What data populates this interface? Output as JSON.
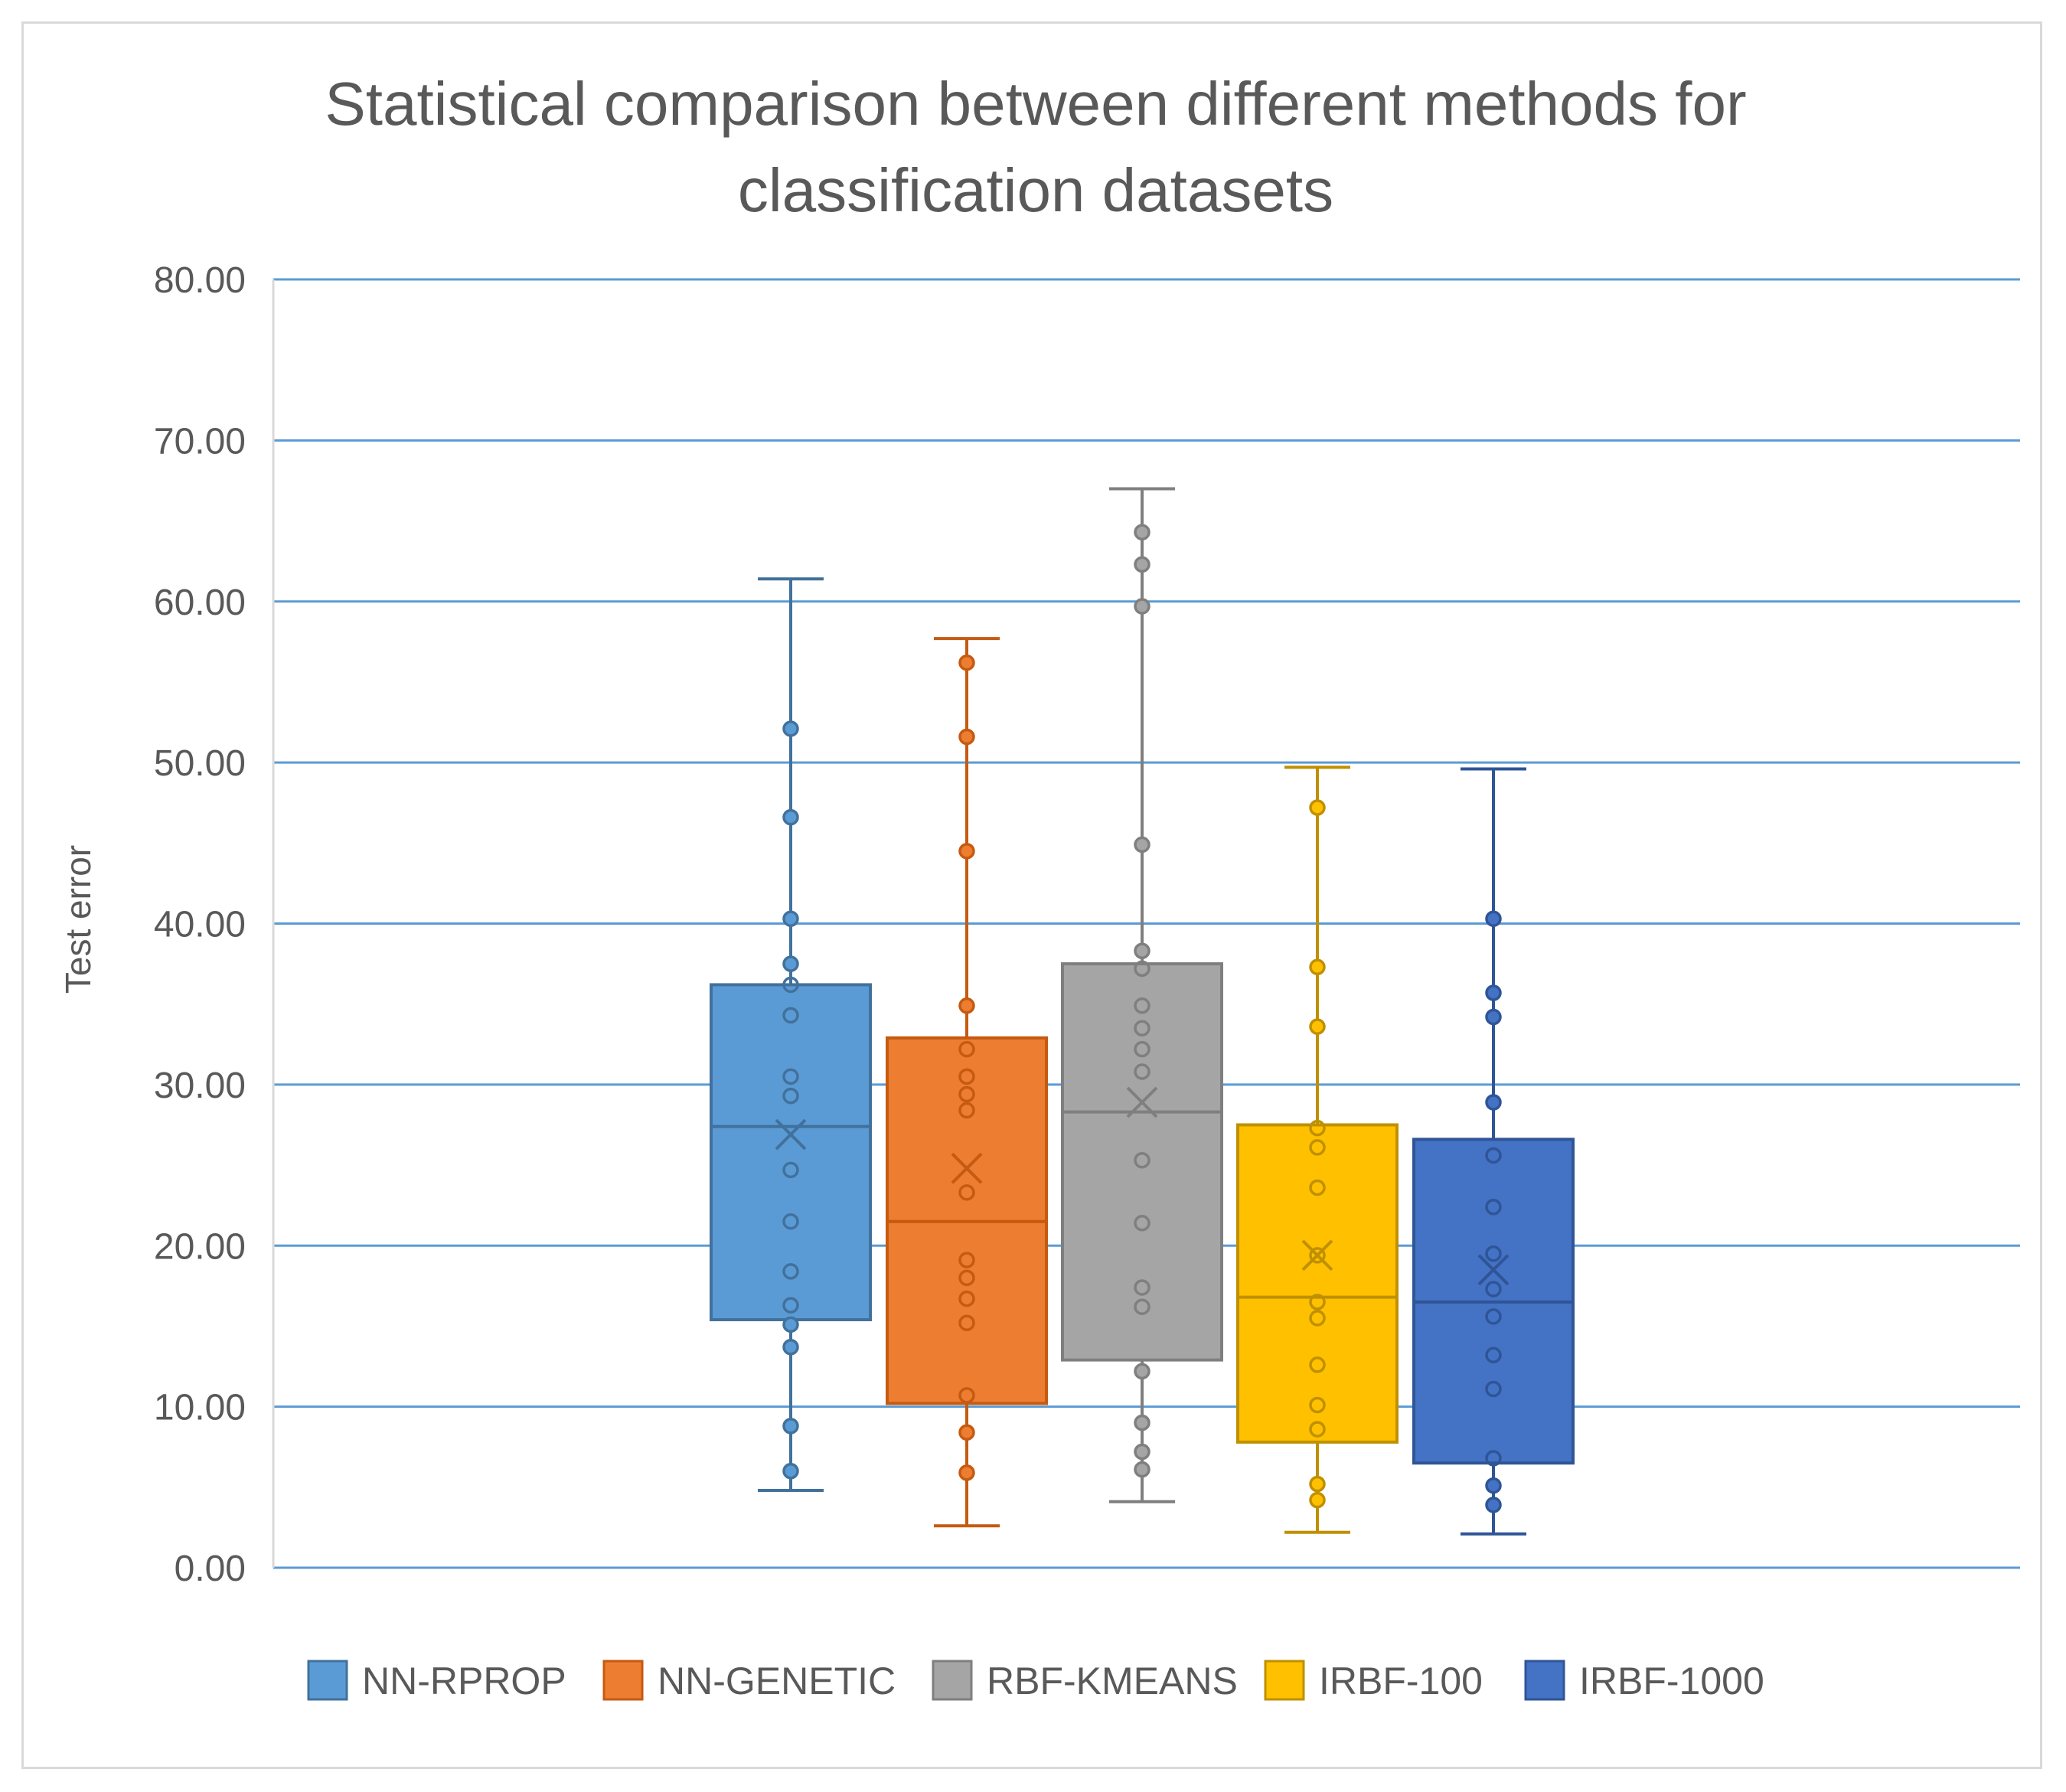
{
  "chart_data": {
    "type": "box",
    "title": "Statistical comparison between different methods for classification datasets",
    "title_lines": [
      "Statistical comparison between different methods for",
      "classification datasets"
    ],
    "ylabel": "Test error",
    "xlabel": "",
    "ylim": [
      0,
      80
    ],
    "ytick_values": [
      0,
      10,
      20,
      30,
      40,
      50,
      60,
      70,
      80
    ],
    "ytick_labels": [
      "0.00",
      "10.00",
      "20.00",
      "30.00",
      "40.00",
      "50.00",
      "60.00",
      "70.00",
      "80.00"
    ],
    "grid": true,
    "legend_position": "bottom",
    "series": [
      {
        "name": "NN-RPROP",
        "color": "#5b9bd5",
        "edge": "#41719c",
        "whisker_low": 4.8,
        "q1": 15.4,
        "median": 27.4,
        "q3": 36.2,
        "whisker_high": 61.4,
        "mean": 26.9,
        "points": [
          6.0,
          8.8,
          13.7,
          15.1,
          16.3,
          18.4,
          21.5,
          24.7,
          29.3,
          30.5,
          34.3,
          36.2,
          37.5,
          40.3,
          46.6,
          52.1
        ]
      },
      {
        "name": "NN-GENETIC",
        "color": "#ed7d31",
        "edge": "#c55a11",
        "whisker_low": 2.6,
        "q1": 10.2,
        "median": 21.5,
        "q3": 32.9,
        "whisker_high": 57.7,
        "mean": 24.8,
        "points": [
          5.9,
          8.4,
          10.7,
          15.2,
          16.7,
          18.0,
          19.1,
          23.3,
          28.4,
          29.4,
          30.5,
          32.2,
          34.9,
          44.5,
          51.6,
          56.2
        ]
      },
      {
        "name": "RBF-KMEANS",
        "color": "#a5a5a5",
        "edge": "#7f7f7f",
        "whisker_low": 4.1,
        "q1": 12.9,
        "median": 28.3,
        "q3": 37.5,
        "whisker_high": 67.0,
        "mean": 28.9,
        "points": [
          6.1,
          7.2,
          9.0,
          12.2,
          16.2,
          17.4,
          21.4,
          25.3,
          30.8,
          32.2,
          33.5,
          34.9,
          37.2,
          38.3,
          44.9,
          59.7,
          62.3,
          64.3
        ]
      },
      {
        "name": "IRBF-100",
        "color": "#ffc000",
        "edge": "#bf9000",
        "whisker_low": 2.2,
        "q1": 7.8,
        "median": 16.8,
        "q3": 27.5,
        "whisker_high": 49.7,
        "mean": 19.4,
        "points": [
          4.2,
          5.2,
          8.6,
          10.1,
          12.6,
          15.5,
          16.5,
          19.4,
          23.6,
          26.1,
          27.3,
          33.6,
          37.3,
          47.2
        ]
      },
      {
        "name": "IRBF-1000",
        "color": "#4472c4",
        "edge": "#2f5597",
        "whisker_low": 2.1,
        "q1": 6.5,
        "median": 16.5,
        "q3": 26.6,
        "whisker_high": 49.6,
        "mean": 18.5,
        "points": [
          3.9,
          5.1,
          6.8,
          11.1,
          13.2,
          15.6,
          17.3,
          19.5,
          22.4,
          25.6,
          28.9,
          34.2,
          35.7,
          40.3
        ]
      }
    ]
  }
}
